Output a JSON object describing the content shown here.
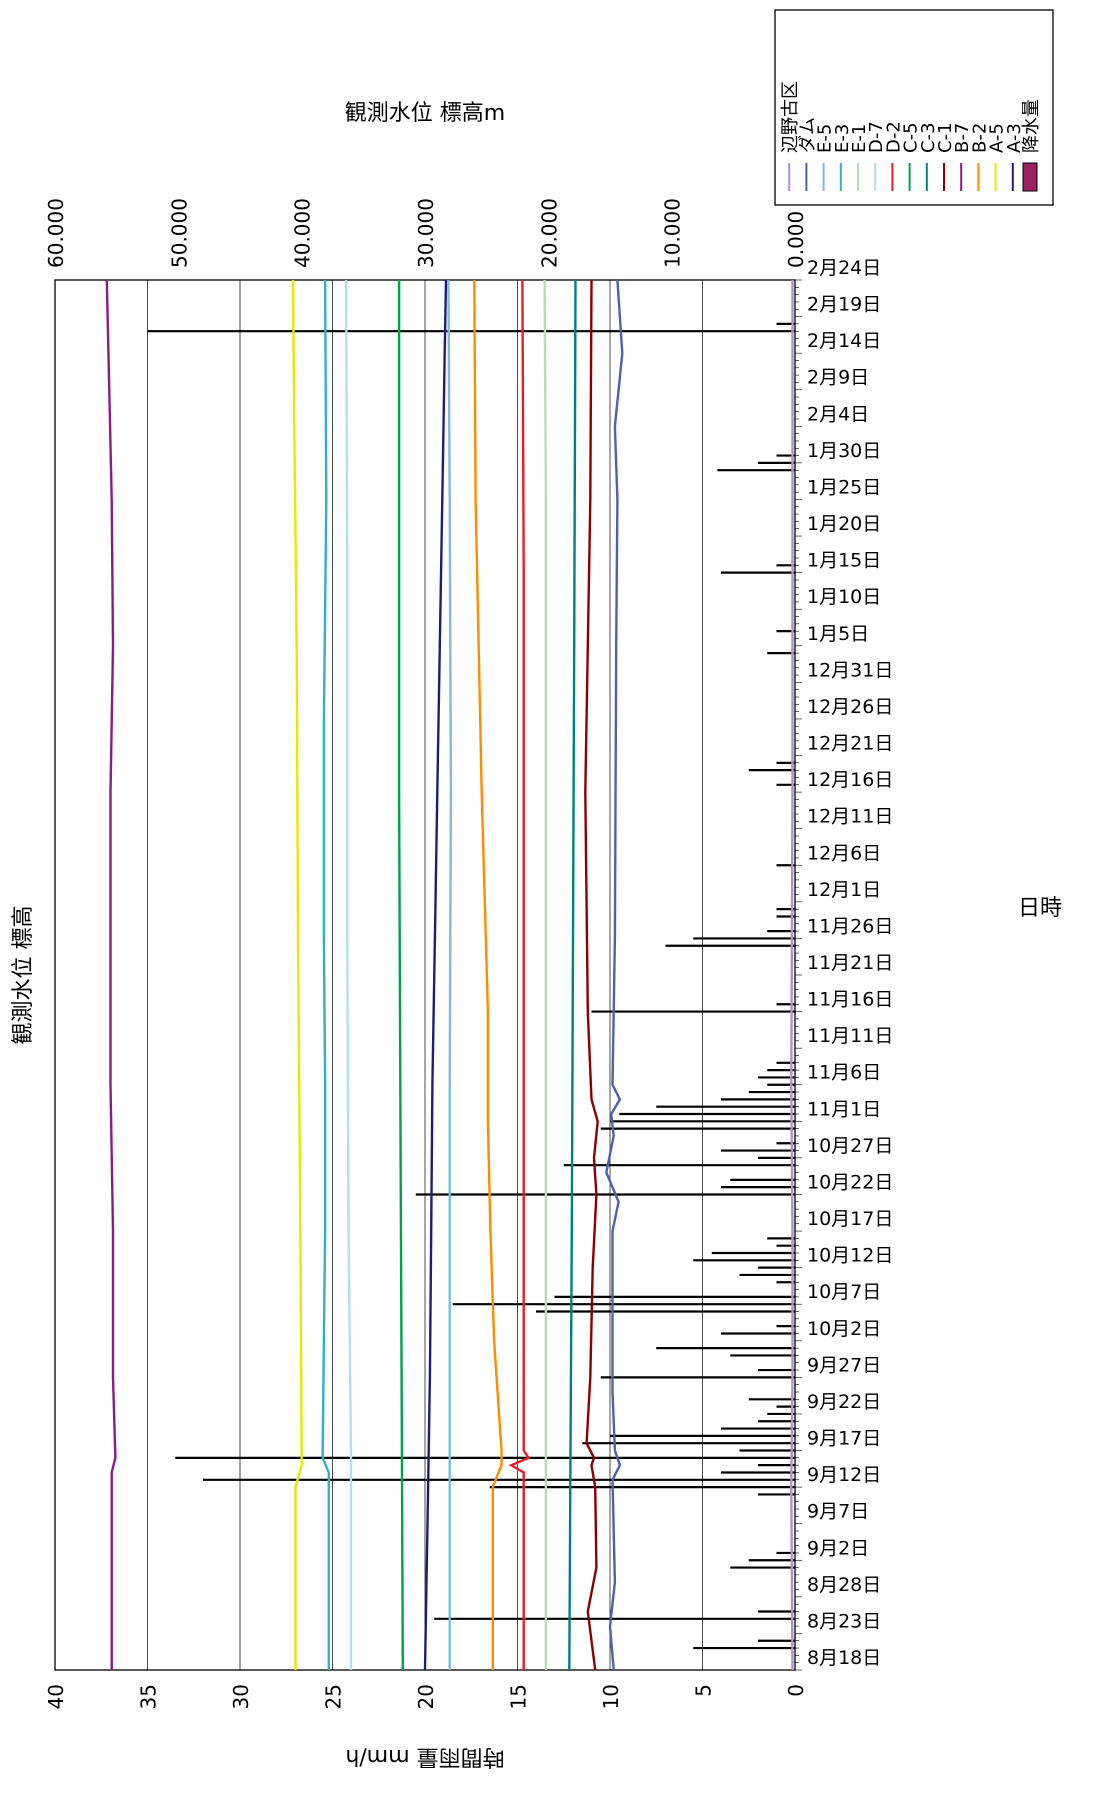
{
  "chart_data": {
    "type": "line",
    "orientation": "rotated-90-clockwise",
    "title": "観測水位 標高",
    "xlabel": "日時",
    "ylabel_left": "時間雨量 mm/h",
    "ylabel_right": "観測水位 標高m",
    "ylim_left": [
      0,
      40
    ],
    "ylim_right": [
      0,
      60
    ],
    "left_ticks": [
      "0",
      "5",
      "10",
      "15",
      "20",
      "25",
      "30",
      "35",
      "40"
    ],
    "right_ticks": [
      "0.000",
      "10.000",
      "20.000",
      "30.000",
      "40.000",
      "50.000",
      "60.000"
    ],
    "xlim": [
      0,
      190
    ],
    "x_tick_labels": [
      "8月18日",
      "8月23日",
      "8月28日",
      "9月2日",
      "9月7日",
      "9月12日",
      "9月17日",
      "9月22日",
      "9月27日",
      "10月2日",
      "10月7日",
      "10月12日",
      "10月17日",
      "10月22日",
      "10月27日",
      "11月1日",
      "11月6日",
      "11月11日",
      "11月16日",
      "11月21日",
      "11月26日",
      "12月1日",
      "12月6日",
      "12月11日",
      "12月16日",
      "12月21日",
      "12月26日",
      "12月31日",
      "1月5日",
      "1月10日",
      "1月15日",
      "1月20日",
      "1月25日",
      "1月30日",
      "2月4日",
      "2月9日",
      "2月14日",
      "2月19日",
      "2月24日"
    ],
    "grid": true,
    "legend_position": "top-right",
    "rain_series": {
      "name": "降水量",
      "color": "#000000",
      "legend_color": "#9b2060",
      "points": [
        [
          3,
          5.5
        ],
        [
          4,
          2
        ],
        [
          7,
          19.5
        ],
        [
          8,
          2
        ],
        [
          14,
          3.5
        ],
        [
          15,
          2.5
        ],
        [
          16,
          1
        ],
        [
          24,
          2
        ],
        [
          25,
          16.5
        ],
        [
          26,
          32
        ],
        [
          27,
          4
        ],
        [
          28,
          2
        ],
        [
          29,
          33.5
        ],
        [
          30,
          3
        ],
        [
          31,
          11.5
        ],
        [
          32,
          10
        ],
        [
          33,
          4
        ],
        [
          34,
          2
        ],
        [
          35,
          1.5
        ],
        [
          36,
          1
        ],
        [
          37,
          2.5
        ],
        [
          40,
          10.5
        ],
        [
          41,
          2
        ],
        [
          43,
          3.5
        ],
        [
          44,
          7.5
        ],
        [
          46,
          4
        ],
        [
          47,
          1
        ],
        [
          49,
          14
        ],
        [
          50,
          18.5
        ],
        [
          51,
          13
        ],
        [
          53,
          1
        ],
        [
          54,
          3
        ],
        [
          55,
          2
        ],
        [
          56,
          5.5
        ],
        [
          57,
          4.5
        ],
        [
          58,
          1
        ],
        [
          59,
          1.5
        ],
        [
          65,
          20.5
        ],
        [
          66,
          4
        ],
        [
          67,
          3.5
        ],
        [
          69,
          12.5
        ],
        [
          70,
          2
        ],
        [
          71,
          4
        ],
        [
          72,
          1
        ],
        [
          74,
          10.5
        ],
        [
          75,
          10
        ],
        [
          76,
          9.5
        ],
        [
          77,
          7.5
        ],
        [
          78,
          4
        ],
        [
          79,
          2.5
        ],
        [
          80,
          1.5
        ],
        [
          81,
          2
        ],
        [
          82,
          1.5
        ],
        [
          83,
          1
        ],
        [
          90,
          11
        ],
        [
          91,
          1
        ],
        [
          99,
          7
        ],
        [
          100,
          5.5
        ],
        [
          101,
          1.5
        ],
        [
          103,
          1
        ],
        [
          104,
          1
        ],
        [
          110,
          1
        ],
        [
          121,
          1
        ],
        [
          123,
          2.5
        ],
        [
          124,
          1
        ],
        [
          139,
          1.5
        ],
        [
          142,
          1
        ],
        [
          150,
          4
        ],
        [
          151,
          1
        ],
        [
          164,
          4.2
        ],
        [
          165,
          2
        ],
        [
          166,
          1
        ],
        [
          183,
          35
        ],
        [
          184,
          1
        ]
      ]
    },
    "series": [
      {
        "name": "A-3",
        "color": "#1e1e7a",
        "points": [
          [
            0,
            30
          ],
          [
            20,
            29.8
          ],
          [
            40,
            29.6
          ],
          [
            60,
            29.5
          ],
          [
            80,
            29.4
          ],
          [
            100,
            29.2
          ],
          [
            120,
            29.0
          ],
          [
            140,
            28.8
          ],
          [
            160,
            28.6
          ],
          [
            180,
            28.4
          ],
          [
            190,
            28.3
          ]
        ]
      },
      {
        "name": "A-5",
        "color": "#e8e800",
        "points": [
          [
            0,
            40.5
          ],
          [
            25,
            40.5
          ],
          [
            28,
            40.0
          ],
          [
            60,
            40.1
          ],
          [
            100,
            40.3
          ],
          [
            140,
            40.4
          ],
          [
            170,
            40.6
          ],
          [
            190,
            40.7
          ]
        ]
      },
      {
        "name": "B-2",
        "color": "#ff8c00",
        "points": [
          [
            0,
            24.5
          ],
          [
            25,
            24.5
          ],
          [
            28,
            23.8
          ],
          [
            30,
            23.8
          ],
          [
            45,
            24.4
          ],
          [
            60,
            24.7
          ],
          [
            75,
            24.9
          ],
          [
            90,
            24.9
          ],
          [
            120,
            25.4
          ],
          [
            160,
            25.9
          ],
          [
            190,
            26.0
          ]
        ]
      },
      {
        "name": "B-7",
        "color": "#8b1a8b",
        "points": [
          [
            0,
            55.4
          ],
          [
            27,
            55.4
          ],
          [
            29,
            55.1
          ],
          [
            40,
            55.3
          ],
          [
            60,
            55.3
          ],
          [
            80,
            55.5
          ],
          [
            100,
            55.5
          ],
          [
            120,
            55.5
          ],
          [
            140,
            55.3
          ],
          [
            160,
            55.4
          ],
          [
            190,
            55.8
          ]
        ]
      },
      {
        "name": "C-1",
        "color": "#8b0000",
        "points": [
          [
            0,
            16.2
          ],
          [
            8,
            16.8
          ],
          [
            14,
            16.1
          ],
          [
            25,
            16.2
          ],
          [
            28,
            16.5
          ],
          [
            29,
            16.3
          ],
          [
            31,
            16.9
          ],
          [
            40,
            16.6
          ],
          [
            55,
            16.4
          ],
          [
            65,
            16.1
          ],
          [
            70,
            16.3
          ],
          [
            75,
            16.0
          ],
          [
            78,
            16.5
          ],
          [
            90,
            16.8
          ],
          [
            120,
            17.0
          ],
          [
            160,
            16.6
          ],
          [
            190,
            16.5
          ]
        ]
      },
      {
        "name": "C-3",
        "color": "#008080",
        "points": [
          [
            0,
            18.3
          ],
          [
            30,
            18.2
          ],
          [
            60,
            18.1
          ],
          [
            100,
            18.0
          ],
          [
            140,
            17.9
          ],
          [
            190,
            17.8
          ]
        ]
      },
      {
        "name": "C-5",
        "color": "#00a050",
        "points": [
          [
            0,
            31.8
          ],
          [
            40,
            31.9
          ],
          [
            80,
            32.0
          ],
          [
            120,
            32.1
          ],
          [
            160,
            32.1
          ],
          [
            190,
            32.1
          ]
        ]
      },
      {
        "name": "D-2",
        "color": "#e61e28",
        "points": [
          [
            0,
            22.0
          ],
          [
            27,
            22.0
          ],
          [
            28,
            23.0
          ],
          [
            29,
            21.6
          ],
          [
            30,
            22.0
          ],
          [
            60,
            22.0
          ],
          [
            100,
            22.0
          ],
          [
            150,
            22.0
          ],
          [
            190,
            22.1
          ]
        ]
      },
      {
        "name": "D-7",
        "color": "#b0e0ec",
        "points": [
          [
            0,
            36.0
          ],
          [
            30,
            36.0
          ],
          [
            60,
            36.2
          ],
          [
            100,
            36.3
          ],
          [
            150,
            36.3
          ],
          [
            190,
            36.4
          ]
        ]
      },
      {
        "name": "E-1",
        "color": "#b8dcb8",
        "points": [
          [
            0,
            20.2
          ],
          [
            40,
            20.2
          ],
          [
            80,
            20.2
          ],
          [
            120,
            20.2
          ],
          [
            160,
            20.2
          ],
          [
            190,
            20.3
          ]
        ]
      },
      {
        "name": "E-3",
        "color": "#30b0d0",
        "points": [
          [
            0,
            37.8
          ],
          [
            27,
            37.8
          ],
          [
            29,
            38.3
          ],
          [
            60,
            38.1
          ],
          [
            80,
            38.1
          ],
          [
            100,
            38.2
          ],
          [
            130,
            38.2
          ],
          [
            160,
            38.0
          ],
          [
            190,
            38.1
          ]
        ]
      },
      {
        "name": "E-5",
        "color": "#80b8e0",
        "points": [
          [
            0,
            28.0
          ],
          [
            40,
            28.0
          ],
          [
            80,
            28.0
          ],
          [
            120,
            27.9
          ],
          [
            160,
            28.0
          ],
          [
            190,
            28.1
          ]
        ]
      },
      {
        "name": "ダム",
        "color": "#5060b0",
        "points": [
          [
            0,
            14.7
          ],
          [
            6,
            15.0
          ],
          [
            12,
            14.6
          ],
          [
            26,
            14.8
          ],
          [
            28,
            14.2
          ],
          [
            30,
            14.6
          ],
          [
            38,
            14.8
          ],
          [
            60,
            14.8
          ],
          [
            64,
            14.3
          ],
          [
            68,
            15.3
          ],
          [
            73,
            14.7
          ],
          [
            76,
            14.9
          ],
          [
            78,
            14.2
          ],
          [
            80,
            14.8
          ],
          [
            100,
            14.6
          ],
          [
            140,
            14.5
          ],
          [
            160,
            14.4
          ],
          [
            170,
            14.6
          ],
          [
            180,
            14.0
          ],
          [
            190,
            14.4
          ]
        ]
      },
      {
        "name": "辺野古区",
        "color": "#b090d0",
        "points": [
          [
            0,
            0.2
          ],
          [
            25,
            0.3
          ],
          [
            40,
            0.2
          ],
          [
            60,
            0.2
          ],
          [
            80,
            0.3
          ],
          [
            120,
            0.2
          ],
          [
            160,
            0.2
          ],
          [
            190,
            0.2
          ]
        ]
      }
    ]
  }
}
